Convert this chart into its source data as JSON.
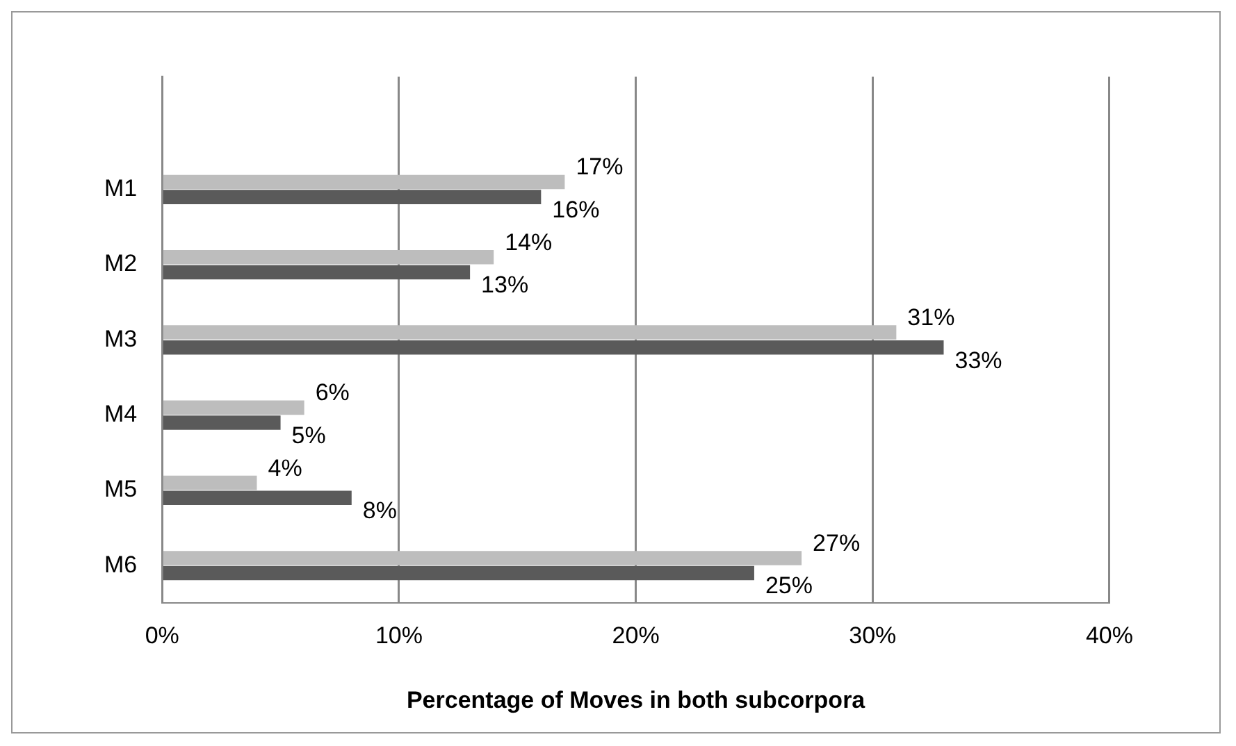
{
  "chart_data": {
    "type": "bar",
    "orientation": "horizontal",
    "xlabel": "Percentage of Moves in both subcorpora",
    "categories": [
      null,
      "M1",
      "M2",
      "M3",
      "M4",
      "M5",
      "M6"
    ],
    "series": [
      {
        "color": "#bdbdbd",
        "values": [
          0,
          17,
          14,
          31,
          6,
          4,
          27
        ],
        "value_labels": [
          null,
          "17%",
          "14%",
          "31%",
          "6%",
          "4%",
          "27%"
        ]
      },
      {
        "color": "#5a5a5a",
        "values": [
          0,
          16,
          13,
          33,
          5,
          8,
          25
        ],
        "value_labels": [
          null,
          "16%",
          "13%",
          "33%",
          "5%",
          "8%",
          "25%"
        ]
      }
    ],
    "xlim": [
      0,
      40
    ],
    "xticks": [
      {
        "value": 0,
        "label": "0%"
      },
      {
        "value": 10,
        "label": "10%"
      },
      {
        "value": 20,
        "label": "20%"
      },
      {
        "value": 30,
        "label": "30%"
      },
      {
        "value": 40,
        "label": "40%"
      }
    ],
    "grid": "x",
    "legend": false
  }
}
